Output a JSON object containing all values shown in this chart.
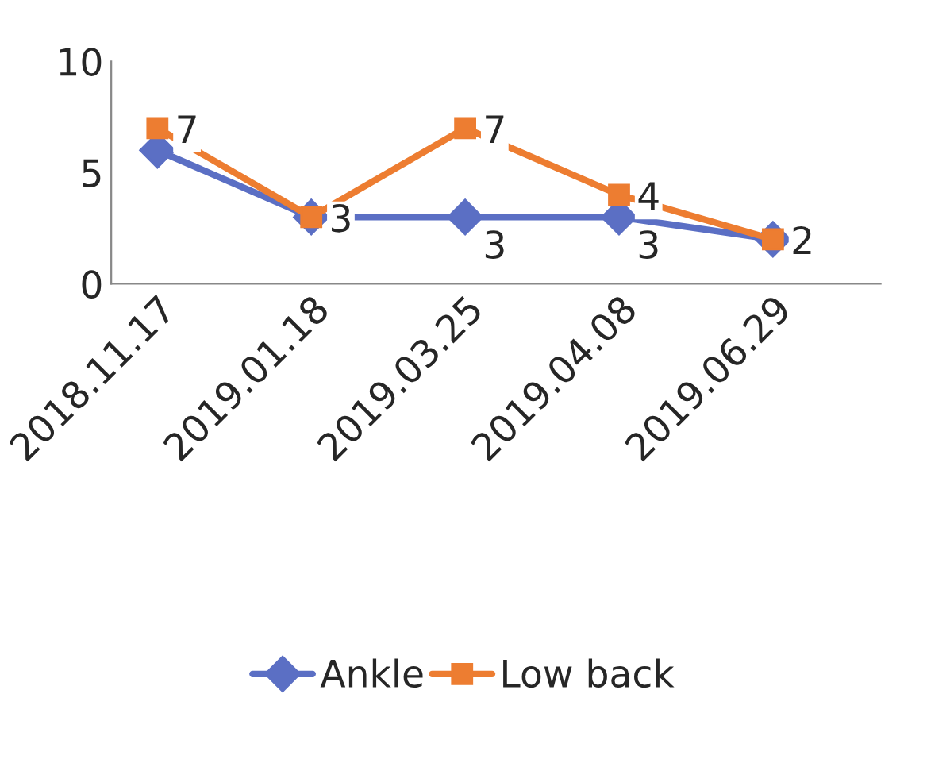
{
  "chart_data": {
    "type": "line",
    "categories": [
      "2018.11.17",
      "2019.01.18",
      "2019.03.25",
      "2019.04.08",
      "2019.06.29"
    ],
    "series": [
      {
        "name": "Ankle",
        "color": "#5b6fc4",
        "marker": "diamond",
        "values": [
          6,
          3,
          3,
          3,
          2
        ],
        "value_labels": [
          null,
          null,
          "3",
          "3",
          null
        ]
      },
      {
        "name": "Low back",
        "color": "#ed7d31",
        "marker": "square",
        "values": [
          7,
          3,
          7,
          4,
          2
        ],
        "value_labels": [
          "7",
          "3",
          "7",
          "4",
          "2"
        ]
      }
    ],
    "ylim": [
      0,
      10
    ],
    "yticks": [
      0,
      5,
      10
    ],
    "grid": false,
    "legend": "bottom"
  }
}
